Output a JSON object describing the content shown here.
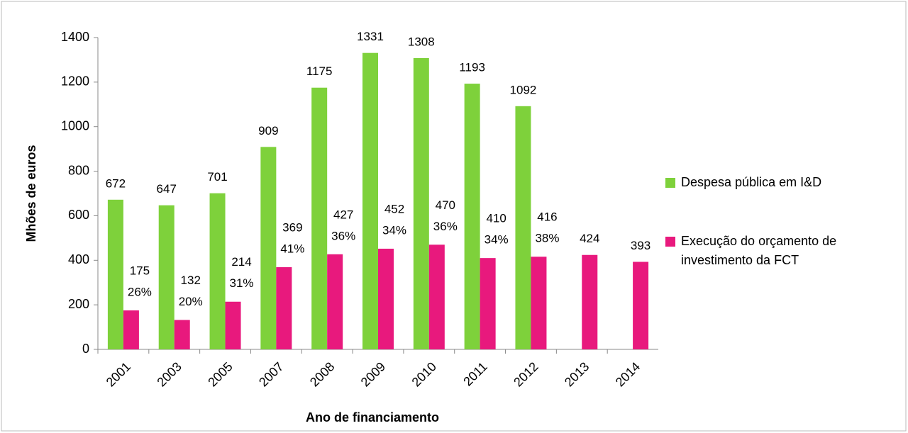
{
  "chart_data": {
    "type": "bar",
    "y_label": "Mhões de euros",
    "x_label": "Ano de financiamento",
    "categories": [
      "2001",
      "2003",
      "2005",
      "2007",
      "2008",
      "2009",
      "2010",
      "2011",
      "2012",
      "2013",
      "2014"
    ],
    "series": [
      {
        "name": "Despesa pública em I&D",
        "color": "#7ed13b",
        "values": [
          672,
          647,
          701,
          909,
          1175,
          1331,
          1308,
          1193,
          1092,
          null,
          null
        ]
      },
      {
        "name": "Execução do orçamento de investimento da FCT",
        "color": "#e8197d",
        "values": [
          175,
          132,
          214,
          369,
          427,
          452,
          470,
          410,
          416,
          424,
          393
        ],
        "share_labels": [
          "26%",
          "20%",
          "31%",
          "41%",
          "36%",
          "34%",
          "36%",
          "34%",
          "38%",
          null,
          null
        ]
      }
    ],
    "ylim": [
      0,
      1400
    ],
    "yticks": [
      0,
      200,
      400,
      600,
      800,
      1000,
      1200,
      1400
    ],
    "legend": "right"
  }
}
